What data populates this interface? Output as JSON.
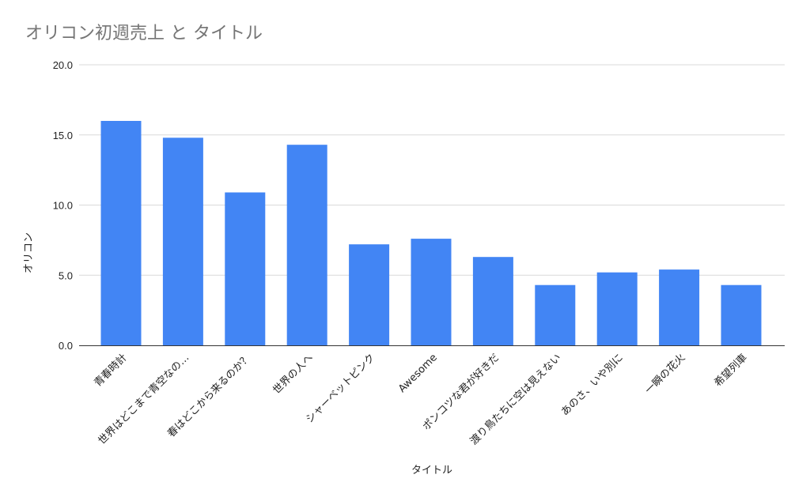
{
  "chart_data": {
    "type": "bar",
    "title": "オリコン初週売上 と タイトル",
    "xlabel": "タイトル",
    "ylabel": "オリコン",
    "ylim": [
      0,
      20
    ],
    "yticks": [
      "0.0",
      "5.0",
      "10.0",
      "15.0",
      "20.0"
    ],
    "grid": true,
    "legend": "none",
    "bar_color": "#4285f4",
    "categories": [
      "青春時計",
      "世界はどこまで青空なの…",
      "春はどこから来るのか？",
      "世界の人へ",
      "シャーベットピンク",
      "Awesome",
      "ポンコツな君が好きだ",
      "渡り鳥たちに空は見えない",
      "あのさ、いや別に",
      "一瞬の花火",
      "希望列車"
    ],
    "values": [
      16.0,
      14.8,
      10.9,
      14.3,
      7.2,
      7.6,
      6.3,
      4.3,
      5.2,
      5.4,
      4.3
    ]
  }
}
